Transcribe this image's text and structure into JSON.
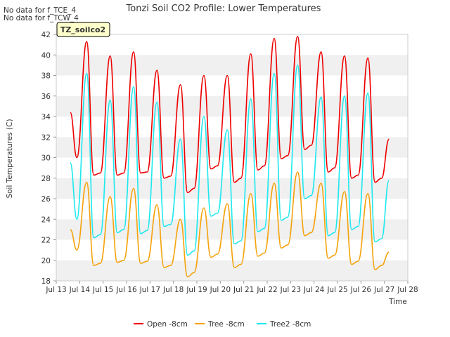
{
  "chart_data": {
    "type": "line",
    "title": "Tonzi Soil CO2 Profile: Lower Temperatures",
    "xlabel": "Time",
    "ylabel": "Soil Temperatures (C)",
    "notes": [
      "No data for f_TCE_4",
      "No data for f_TCW_4"
    ],
    "badge": "TZ_soilco2",
    "xlim": [
      13,
      28
    ],
    "ylim": [
      18,
      42
    ],
    "x_ticks": [
      13,
      14,
      15,
      16,
      17,
      18,
      19,
      20,
      21,
      22,
      23,
      24,
      25,
      26,
      27,
      28
    ],
    "x_tick_labels": [
      "Jul 13",
      "Jul 14",
      "Jul 15",
      "Jul 16",
      "Jul 17",
      "Jul 18",
      "Jul 19",
      "Jul 20",
      "Jul 21",
      "Jul 22",
      "Jul 23",
      "Jul 24",
      "Jul 25",
      "Jul 26",
      "Jul 27",
      "Jul 28"
    ],
    "y_ticks": [
      18,
      20,
      22,
      24,
      26,
      28,
      30,
      32,
      34,
      36,
      38,
      40,
      42
    ],
    "grid": "horizontal bands",
    "legend_position": "bottom",
    "series": [
      {
        "name": "Open -8cm",
        "color": "#ee0000",
        "x": [
          13.6,
          13.88,
          14.3,
          14.6,
          14.88,
          15.3,
          15.6,
          15.88,
          16.3,
          16.6,
          16.88,
          17.3,
          17.6,
          17.88,
          18.3,
          18.6,
          18.88,
          19.3,
          19.6,
          19.88,
          20.3,
          20.6,
          20.88,
          21.3,
          21.6,
          21.88,
          22.3,
          22.6,
          22.88,
          23.3,
          23.6,
          23.88,
          24.3,
          24.6,
          24.88,
          25.3,
          25.6,
          25.88,
          26.3,
          26.6,
          26.88,
          27.2
        ],
        "y": [
          34.4,
          30.0,
          41.3,
          28.3,
          28.5,
          39.9,
          28.3,
          28.5,
          40.3,
          28.5,
          28.6,
          38.5,
          28.0,
          28.2,
          37.1,
          26.6,
          27.0,
          38.0,
          28.9,
          29.2,
          38.0,
          27.6,
          28.0,
          40.1,
          28.8,
          29.2,
          41.6,
          29.9,
          30.2,
          41.8,
          30.8,
          31.2,
          40.3,
          28.6,
          29.0,
          39.9,
          28.0,
          28.3,
          39.7,
          27.6,
          28.0,
          31.8
        ]
      },
      {
        "name": "Tree -8cm",
        "color": "#f5a30c",
        "x": [
          13.6,
          13.88,
          14.3,
          14.6,
          14.88,
          15.3,
          15.6,
          15.88,
          16.3,
          16.6,
          16.88,
          17.3,
          17.6,
          17.88,
          18.3,
          18.6,
          18.88,
          19.3,
          19.6,
          19.88,
          20.3,
          20.6,
          20.88,
          21.3,
          21.6,
          21.88,
          22.3,
          22.6,
          22.88,
          23.3,
          23.6,
          23.88,
          24.3,
          24.6,
          24.88,
          25.3,
          25.6,
          25.88,
          26.3,
          26.6,
          26.88,
          27.2
        ],
        "y": [
          23.0,
          21.0,
          27.6,
          19.5,
          19.7,
          26.2,
          19.8,
          20.0,
          27.0,
          19.7,
          19.9,
          25.4,
          19.3,
          19.5,
          24.0,
          18.4,
          18.8,
          25.1,
          20.3,
          20.6,
          25.5,
          19.3,
          19.6,
          26.5,
          20.4,
          20.7,
          27.5,
          21.2,
          21.5,
          28.6,
          22.4,
          22.7,
          27.5,
          20.2,
          20.5,
          26.7,
          19.6,
          19.9,
          26.5,
          19.1,
          19.5,
          20.8
        ]
      },
      {
        "name": "Tree2 -8cm",
        "color": "#1ee8ee",
        "x": [
          13.6,
          13.88,
          14.3,
          14.6,
          14.88,
          15.3,
          15.6,
          15.88,
          16.3,
          16.6,
          16.88,
          17.3,
          17.6,
          17.88,
          18.3,
          18.6,
          18.88,
          19.3,
          19.6,
          19.88,
          20.3,
          20.6,
          20.88,
          21.3,
          21.6,
          21.88,
          22.3,
          22.6,
          22.88,
          23.3,
          23.6,
          23.88,
          24.3,
          24.6,
          24.88,
          25.3,
          25.6,
          25.88,
          26.3,
          26.6,
          26.88,
          27.2
        ],
        "y": [
          29.5,
          24.0,
          38.2,
          22.2,
          22.5,
          35.6,
          22.7,
          23.0,
          36.9,
          22.6,
          22.9,
          35.4,
          23.3,
          23.5,
          31.8,
          20.5,
          20.9,
          34.0,
          24.3,
          24.6,
          32.7,
          21.6,
          21.9,
          35.7,
          22.8,
          23.1,
          38.2,
          23.9,
          24.2,
          39.0,
          26.0,
          26.3,
          35.9,
          22.4,
          22.7,
          36.0,
          23.0,
          23.3,
          36.3,
          21.8,
          22.1,
          27.8
        ]
      }
    ]
  }
}
